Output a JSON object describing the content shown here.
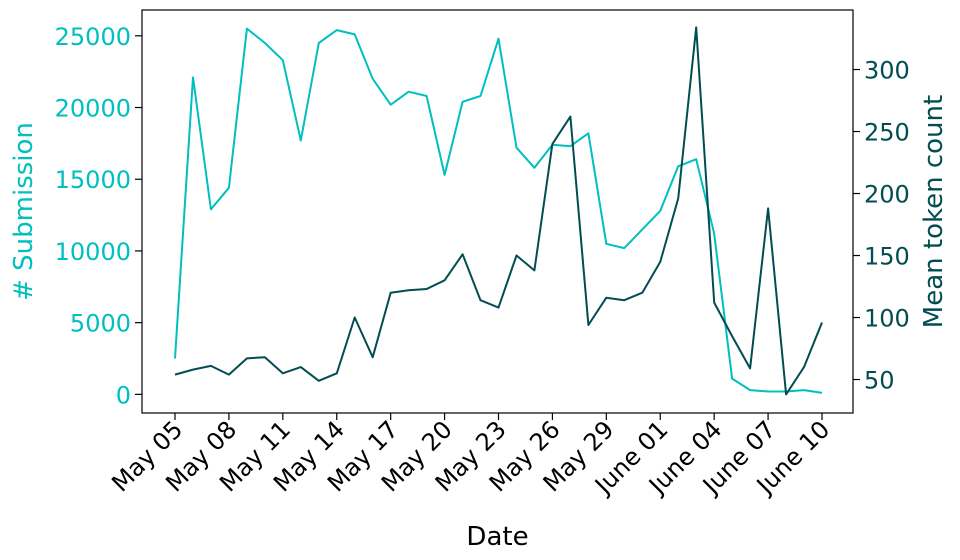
{
  "chart_data": {
    "type": "line",
    "xlabel": "Date",
    "ylabel_left": "# Submission",
    "ylabel_right": "Mean token count",
    "x_dates": [
      "May 05",
      "May 06",
      "May 07",
      "May 08",
      "May 09",
      "May 10",
      "May 11",
      "May 12",
      "May 13",
      "May 14",
      "May 15",
      "May 16",
      "May 17",
      "May 18",
      "May 19",
      "May 20",
      "May 21",
      "May 22",
      "May 23",
      "May 24",
      "May 25",
      "May 26",
      "May 27",
      "May 28",
      "May 29",
      "May 30",
      "May 31",
      "June 01",
      "June 02",
      "June 03",
      "June 04",
      "June 05",
      "June 06",
      "June 07",
      "June 08",
      "June 09",
      "June 10"
    ],
    "x_tick_labels": [
      "May 05",
      "May 08",
      "May 11",
      "May 14",
      "May 17",
      "May 20",
      "May 23",
      "May 26",
      "May 29",
      "June 01",
      "June 04",
      "June 07",
      "June 10"
    ],
    "left_axis": {
      "ylim": [
        -1300,
        26800
      ],
      "ticks": [
        0,
        5000,
        10000,
        15000,
        20000,
        25000
      ],
      "color": "#00BFBF"
    },
    "right_axis": {
      "ylim": [
        23,
        348
      ],
      "ticks": [
        50,
        100,
        150,
        200,
        250,
        300
      ],
      "color": "#004D52"
    },
    "series": [
      {
        "axis": "left",
        "color": "#00BFBF",
        "values": [
          2500,
          22100,
          12900,
          14400,
          25500,
          24500,
          23300,
          17700,
          24500,
          25400,
          25100,
          22000,
          20200,
          21100,
          20800,
          15300,
          20400,
          20800,
          24800,
          17200,
          15800,
          17400,
          17300,
          18200,
          10500,
          10200,
          11500,
          12800,
          15900,
          16400,
          11200,
          1100,
          300,
          200,
          200,
          300,
          100
        ]
      },
      {
        "axis": "right",
        "color": "#004D52",
        "values": [
          54,
          58,
          61,
          54,
          67,
          68,
          55,
          60,
          49,
          55,
          100,
          68,
          120,
          122,
          123,
          130,
          151,
          114,
          108,
          150,
          138,
          240,
          262,
          94,
          116,
          114,
          120,
          145,
          196,
          334,
          112,
          85,
          59,
          188,
          38,
          60,
          96
        ]
      }
    ],
    "grid": false,
    "legend": "none"
  }
}
